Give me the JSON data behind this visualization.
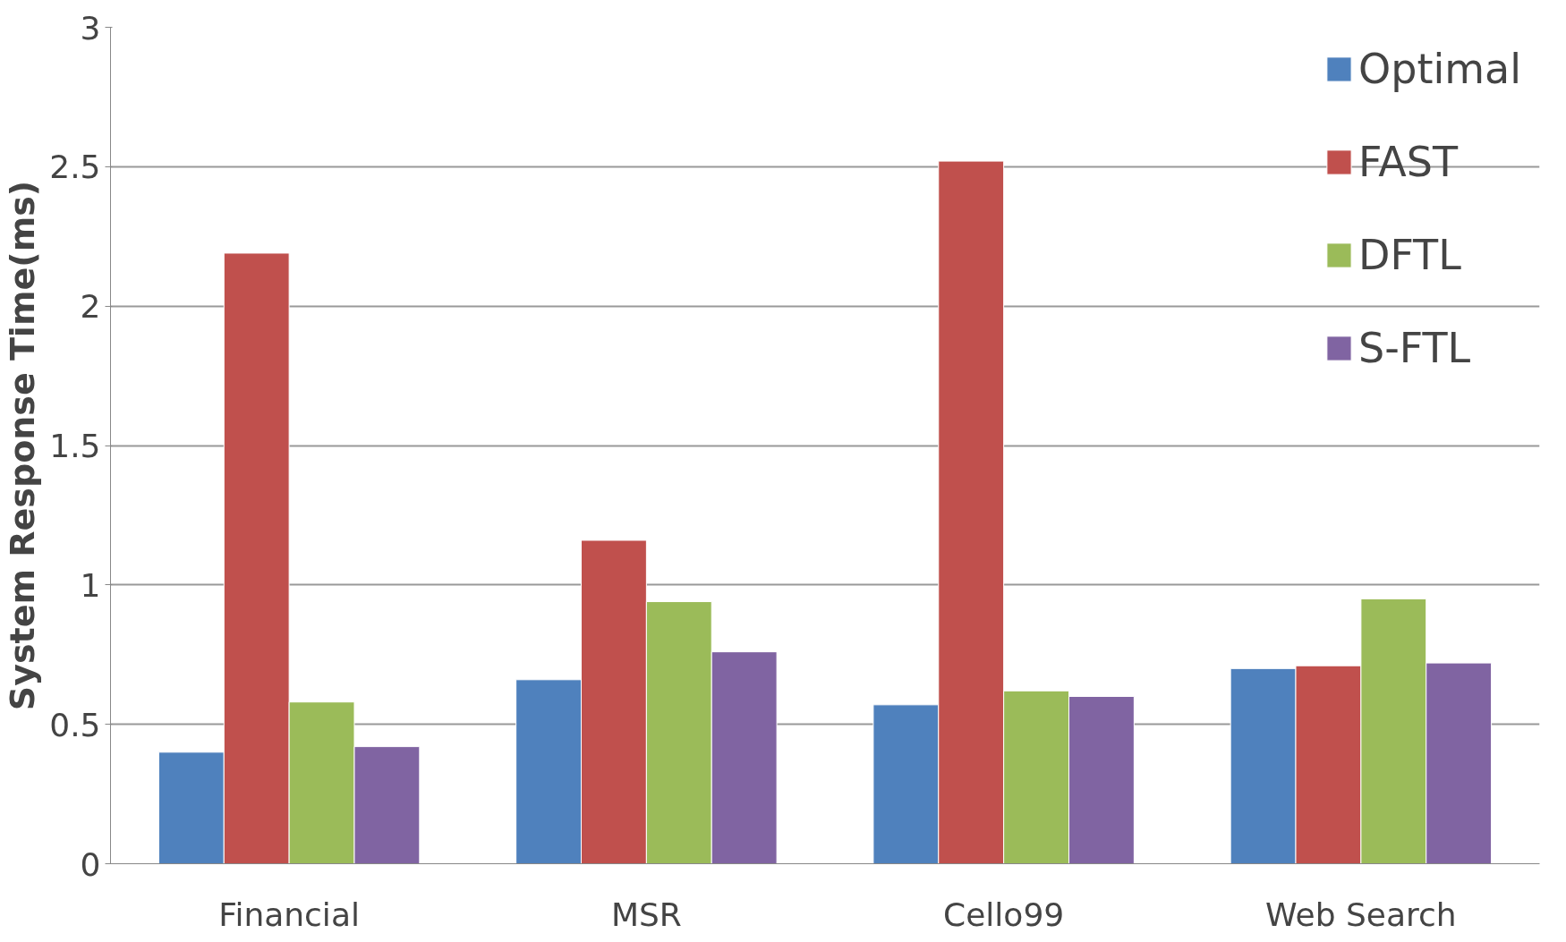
{
  "chart_data": {
    "type": "bar",
    "ylabel": "System Response Time(ms)",
    "categories": [
      "Financial",
      "MSR",
      "Cello99",
      "Web Search"
    ],
    "series": [
      {
        "name": "Optimal",
        "color": "#4f81bd",
        "values": [
          0.4,
          0.66,
          0.57,
          0.7
        ]
      },
      {
        "name": "FAST",
        "color": "#c0504d",
        "values": [
          2.19,
          1.16,
          2.52,
          0.71
        ]
      },
      {
        "name": "DFTL",
        "color": "#9bbb59",
        "values": [
          0.58,
          0.94,
          0.62,
          0.95
        ]
      },
      {
        "name": "S-FTL",
        "color": "#8064a2",
        "values": [
          0.42,
          0.76,
          0.6,
          0.72
        ]
      }
    ],
    "ylim": [
      0,
      3
    ],
    "yticks": [
      0,
      0.5,
      1,
      1.5,
      2,
      2.5,
      3
    ],
    "grid": "y",
    "legend": "top right"
  }
}
